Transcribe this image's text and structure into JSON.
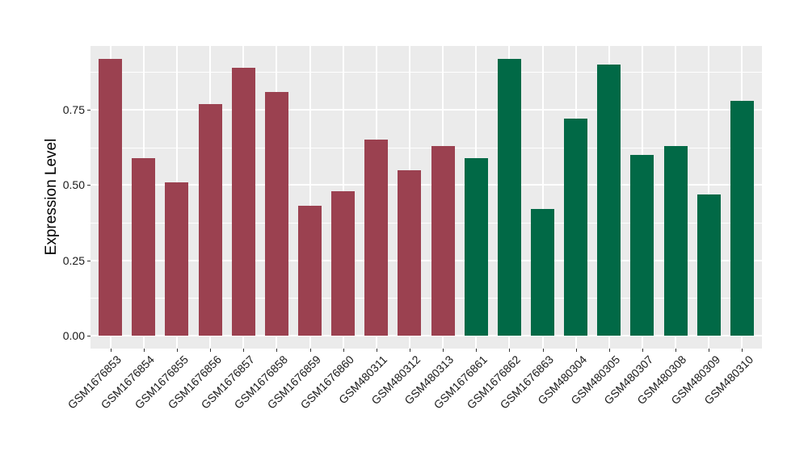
{
  "chart_data": {
    "type": "bar",
    "title": "",
    "xlabel": "",
    "ylabel": "Expression Level",
    "categories": [
      "GSM1676853",
      "GSM1676854",
      "GSM1676855",
      "GSM1676856",
      "GSM1676857",
      "GSM1676858",
      "GSM1676859",
      "GSM1676860",
      "GSM480311",
      "GSM480312",
      "GSM480313",
      "GSM1676861",
      "GSM1676862",
      "GSM1676863",
      "GSM480304",
      "GSM480305",
      "GSM480307",
      "GSM480308",
      "GSM480309",
      "GSM480310"
    ],
    "values": [
      0.92,
      0.59,
      0.51,
      0.77,
      0.89,
      0.81,
      0.43,
      0.48,
      0.65,
      0.55,
      0.63,
      0.59,
      0.92,
      0.42,
      0.72,
      0.9,
      0.6,
      0.63,
      0.47,
      0.78
    ],
    "groups": [
      "A",
      "A",
      "A",
      "A",
      "A",
      "A",
      "A",
      "A",
      "A",
      "A",
      "A",
      "B",
      "B",
      "B",
      "B",
      "B",
      "B",
      "B",
      "B",
      "B"
    ],
    "group_colors": {
      "A": "#9B4150",
      "B": "#016946"
    },
    "y_ticks": [
      0.0,
      0.25,
      0.5,
      0.75
    ],
    "y_tick_labels": [
      "0.00",
      "0.25",
      "0.50",
      "0.75"
    ],
    "y_minor_ticks": [
      0.125,
      0.375,
      0.625,
      0.875
    ],
    "ylim": [
      -0.046,
      0.962
    ],
    "grid": "white major and minor horizontal lines, white vertical lines at bar centers, on gray panel",
    "legend": "none",
    "panel_bg": "#EBEBEB",
    "grid_color": "#FFFFFF",
    "tick_color": "#333333"
  }
}
